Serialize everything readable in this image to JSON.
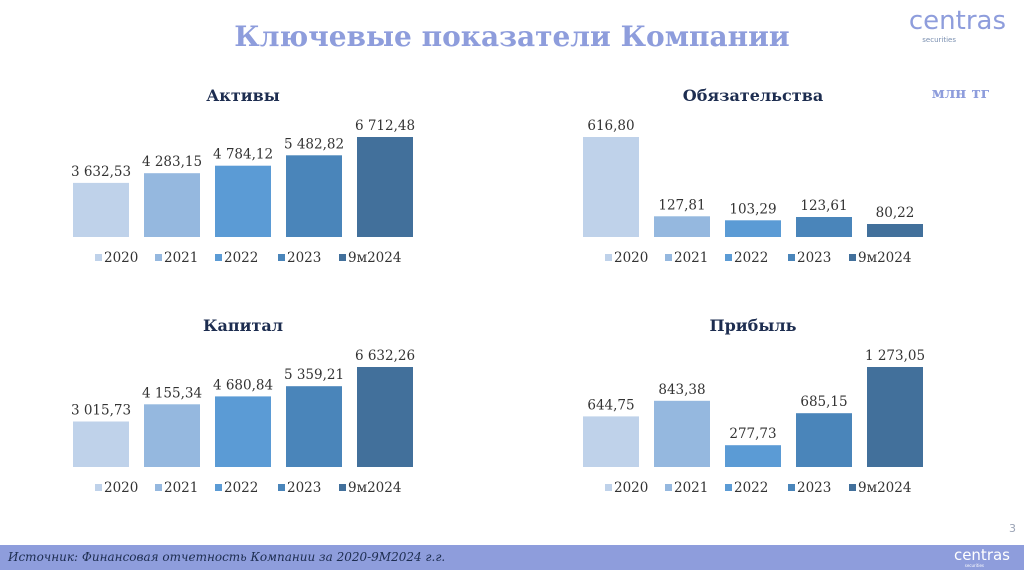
{
  "header": {
    "title": "Ключевые показатели Компании",
    "units": "млн тг",
    "logo_main": "centras",
    "logo_sub": "securities"
  },
  "colors": {
    "series": [
      "#bfd2ea",
      "#95b8df",
      "#5b9bd5",
      "#4a85ba",
      "#42709b"
    ],
    "title": "#8e9ddc",
    "chart_title": "#1d2d50"
  },
  "chart_data": [
    {
      "type": "bar",
      "title": "Активы",
      "categories": [
        "2020",
        "2021",
        "2022",
        "2023",
        "9м2024"
      ],
      "values": [
        3632.53,
        4283.15,
        4784.12,
        5482.82,
        6712.48
      ],
      "labels": [
        "3 632,53",
        "4 283,15",
        "4 784,12",
        "5 482,82",
        "6 712,48"
      ],
      "ylim": [
        0,
        6712.48
      ],
      "legend": "bottom",
      "grid": false
    },
    {
      "type": "bar",
      "title": "Обязательства",
      "categories": [
        "2020",
        "2021",
        "2022",
        "2023",
        "9м2024"
      ],
      "values": [
        616.8,
        127.81,
        103.29,
        123.61,
        80.22
      ],
      "labels": [
        "616,80",
        "127,81",
        "103,29",
        "123,61",
        "80,22"
      ],
      "ylim": [
        0,
        616.8
      ],
      "legend": "bottom",
      "grid": false
    },
    {
      "type": "bar",
      "title": "Капитал",
      "categories": [
        "2020",
        "2021",
        "2022",
        "2023",
        "9м2024"
      ],
      "values": [
        3015.73,
        4155.34,
        4680.84,
        5359.21,
        6632.26
      ],
      "labels": [
        "3 015,73",
        "4 155,34",
        "4 680,84",
        "5 359,21",
        "6 632,26"
      ],
      "ylim": [
        0,
        6632.26
      ],
      "legend": "bottom",
      "grid": false
    },
    {
      "type": "bar",
      "title": "Прибыль",
      "categories": [
        "2020",
        "2021",
        "2022",
        "2023",
        "9м2024"
      ],
      "values": [
        644.75,
        843.38,
        277.73,
        685.15,
        1273.05
      ],
      "labels": [
        "644,75",
        "843,38",
        "277,73",
        "685,15",
        "1 273,05"
      ],
      "ylim": [
        0,
        1273.05
      ],
      "legend": "bottom",
      "grid": false
    }
  ],
  "footer": {
    "page_number": "3",
    "source": "Источник: Финансовая отчетность Компании за 2020-9М2024 г.г.",
    "logo_main": "centras",
    "logo_sub": "securities"
  }
}
